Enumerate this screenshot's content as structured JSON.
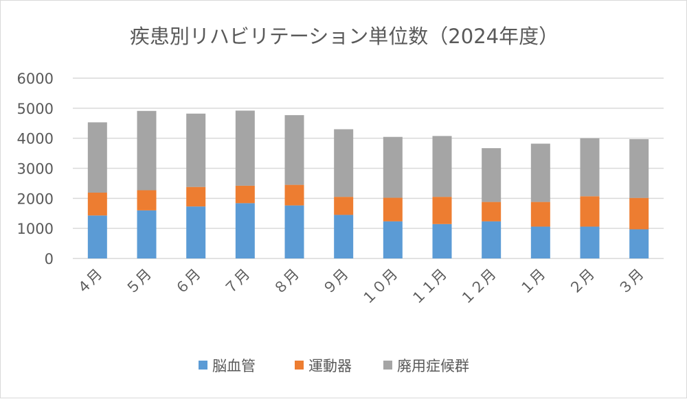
{
  "chart_data": {
    "type": "bar",
    "stacked": true,
    "title": "疾患別リハビリテーション単位数（2024年度）",
    "xlabel": "",
    "ylabel": "",
    "ylim": [
      0,
      6000
    ],
    "yticks": [
      "0",
      "1000",
      "2000",
      "3000",
      "4000",
      "5000",
      "6000"
    ],
    "grid": true,
    "legend_position": "bottom",
    "categories": [
      "４月",
      "５月",
      "６月",
      "７月",
      "８月",
      "９月",
      "１０月",
      "１１月",
      "１２月",
      "１月",
      "２月",
      "３月"
    ],
    "series": [
      {
        "name": "脳血管",
        "color": "#5b9bd5",
        "values": [
          1430,
          1600,
          1730,
          1840,
          1765,
          1450,
          1235,
          1145,
          1235,
          1060,
          1060,
          970
        ]
      },
      {
        "name": "運動器",
        "color": "#ed7d31",
        "values": [
          760,
          670,
          650,
          580,
          685,
          600,
          785,
          905,
          645,
          820,
          1010,
          1045
        ]
      },
      {
        "name": "廃用症候群",
        "color": "#a5a5a5",
        "values": [
          2340,
          2640,
          2440,
          2500,
          2320,
          2250,
          2025,
          2025,
          1790,
          1940,
          1930,
          1955
        ]
      }
    ]
  }
}
